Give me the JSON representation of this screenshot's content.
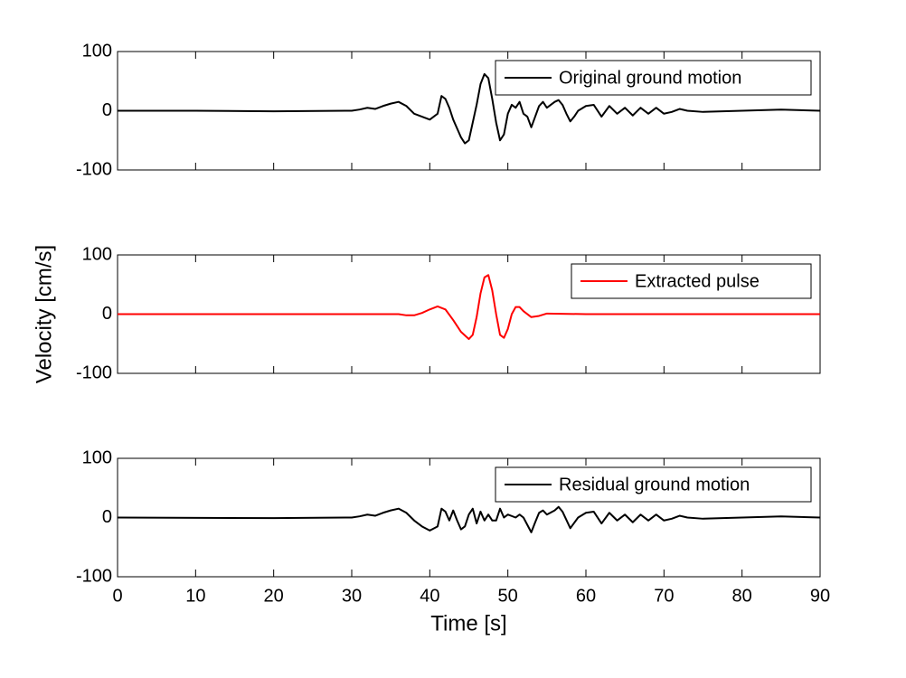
{
  "chart_data": [
    {
      "type": "line",
      "legend": "upper right",
      "x": [
        0,
        10,
        20,
        30,
        31,
        32,
        33,
        34,
        35,
        36,
        37,
        38,
        39,
        40,
        41,
        41.5,
        42,
        42.5,
        43,
        43.5,
        44,
        44.5,
        45,
        45.5,
        46,
        46.5,
        47,
        47.5,
        48,
        48.5,
        49,
        49.5,
        50,
        50.5,
        51,
        51.5,
        52,
        52.5,
        53,
        53.5,
        54,
        54.5,
        55,
        55.5,
        56,
        56.5,
        57,
        57.5,
        58,
        58.5,
        59,
        60,
        61,
        62,
        63,
        64,
        65,
        66,
        67,
        68,
        69,
        70,
        71,
        72,
        73,
        75,
        80,
        85,
        90
      ],
      "series": [
        {
          "name": "Original ground motion",
          "color": "#000000",
          "values": [
            0,
            0,
            -1,
            0,
            2,
            5,
            3,
            8,
            12,
            15,
            8,
            -5,
            -10,
            -15,
            -5,
            25,
            20,
            5,
            -15,
            -30,
            -45,
            -55,
            -50,
            -20,
            10,
            45,
            62,
            55,
            20,
            -20,
            -50,
            -40,
            -5,
            10,
            5,
            15,
            -5,
            -10,
            -28,
            -10,
            8,
            15,
            5,
            10,
            15,
            18,
            10,
            -5,
            -18,
            -10,
            0,
            8,
            10,
            -10,
            8,
            -5,
            5,
            -8,
            5,
            -5,
            5,
            -5,
            -2,
            3,
            0,
            -2,
            0,
            2,
            0
          ]
        }
      ],
      "xlim": [
        0,
        90
      ],
      "ylim": [
        -100,
        100
      ],
      "yticks": [
        -100,
        0,
        100
      ]
    },
    {
      "type": "line",
      "legend": "upper right",
      "ylabel": "Velocity [cm/s]",
      "x": [
        0,
        30,
        36,
        37,
        38,
        39,
        40,
        41,
        42,
        43,
        44,
        45,
        45.5,
        46,
        46.5,
        47,
        47.5,
        48,
        48.5,
        49,
        49.5,
        50,
        50.5,
        51,
        51.5,
        52,
        53,
        54,
        55,
        60,
        90
      ],
      "series": [
        {
          "name": "Extracted pulse",
          "color": "#ff0000",
          "values": [
            0,
            0,
            0,
            -2,
            -2,
            2,
            8,
            13,
            8,
            -10,
            -30,
            -42,
            -35,
            -5,
            35,
            62,
            66,
            40,
            0,
            -35,
            -40,
            -25,
            0,
            12,
            12,
            5,
            -5,
            -3,
            1,
            0,
            0
          ]
        }
      ],
      "xlim": [
        0,
        90
      ],
      "ylim": [
        -100,
        100
      ],
      "yticks": [
        -100,
        0,
        100
      ]
    },
    {
      "type": "line",
      "legend": "upper right",
      "xlabel": "Time [s]",
      "x": [
        0,
        20,
        30,
        31,
        32,
        33,
        34,
        35,
        36,
        37,
        38,
        39,
        40,
        41,
        41.5,
        42,
        42.5,
        43,
        43.5,
        44,
        44.5,
        45,
        45.5,
        46,
        46.5,
        47,
        47.5,
        48,
        48.5,
        49,
        49.5,
        50,
        51,
        51.5,
        52,
        53,
        53.5,
        54,
        54.5,
        55,
        56,
        56.5,
        57,
        58,
        59,
        60,
        61,
        62,
        63,
        64,
        65,
        66,
        67,
        68,
        69,
        70,
        71,
        72,
        73,
        75,
        80,
        85,
        90
      ],
      "series": [
        {
          "name": "Residual ground motion",
          "color": "#000000",
          "values": [
            0,
            -1,
            0,
            2,
            5,
            3,
            8,
            12,
            15,
            8,
            -5,
            -15,
            -22,
            -15,
            15,
            10,
            -5,
            12,
            -5,
            -20,
            -15,
            5,
            15,
            -10,
            10,
            -5,
            5,
            -5,
            -5,
            15,
            0,
            5,
            0,
            5,
            0,
            -25,
            -8,
            8,
            12,
            5,
            12,
            18,
            10,
            -18,
            0,
            8,
            10,
            -10,
            8,
            -5,
            5,
            -8,
            5,
            -5,
            5,
            -5,
            -2,
            3,
            0,
            -2,
            0,
            2,
            0
          ]
        }
      ],
      "xlim": [
        0,
        90
      ],
      "ylim": [
        -100,
        100
      ],
      "yticks": [
        -100,
        0,
        100
      ],
      "xticks": [
        0,
        10,
        20,
        30,
        40,
        50,
        60,
        70,
        80,
        90
      ]
    }
  ]
}
